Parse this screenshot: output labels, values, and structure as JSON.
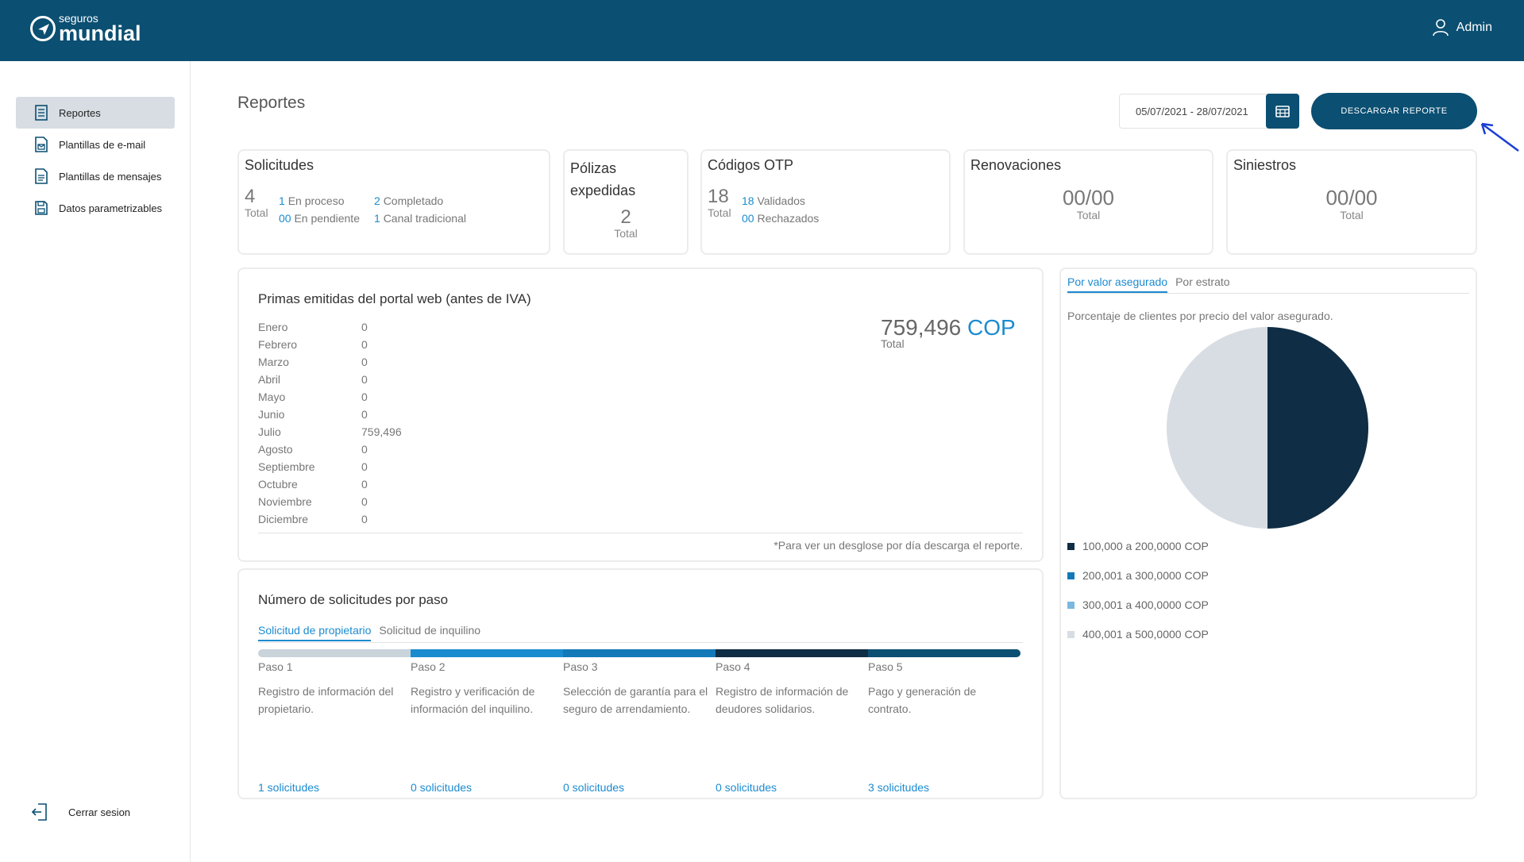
{
  "brand": {
    "small": "seguros",
    "big": "mundial"
  },
  "user": {
    "name": "Admin"
  },
  "sidebar": {
    "items": [
      {
        "label": "Reportes"
      },
      {
        "label": "Plantillas de e-mail"
      },
      {
        "label": "Plantillas de mensajes"
      },
      {
        "label": "Datos parametrizables"
      }
    ],
    "logout": "Cerrar sesion"
  },
  "header": {
    "title": "Reportes",
    "date_range": "05/07/2021 - 28/07/2021",
    "download_label": "DESCARGAR REPORTE"
  },
  "cards": {
    "solicitudes": {
      "title": "Solicitudes",
      "total": "4",
      "total_label": "Total",
      "proceso_n": "1",
      "proceso_l": "En proceso",
      "pendiente_n": "00",
      "pendiente_l": "En pendiente",
      "completado_n": "2",
      "completado_l": "Completado",
      "canal_n": "1",
      "canal_l": "Canal tradicional"
    },
    "polizas": {
      "title_1": "Pólizas",
      "title_2": "expedidas",
      "total": "2",
      "total_label": "Total"
    },
    "otp": {
      "title": "Códigos OTP",
      "total": "18",
      "total_label": "Total",
      "validados_n": "18",
      "validados_l": "Validados",
      "rechazados_n": "00",
      "rechazados_l": "Rechazados"
    },
    "renovaciones": {
      "title": "Renovaciones",
      "value": "00/00",
      "label": "Total"
    },
    "siniestros": {
      "title": "Siniestros",
      "value": "00/00",
      "label": "Total"
    }
  },
  "primas": {
    "title": "Primas emitidas del portal web (antes de IVA)",
    "months": [
      {
        "name": "Enero",
        "value": "0"
      },
      {
        "name": "Febrero",
        "value": "0"
      },
      {
        "name": "Marzo",
        "value": "0"
      },
      {
        "name": "Abril",
        "value": "0"
      },
      {
        "name": "Mayo",
        "value": "0"
      },
      {
        "name": "Junio",
        "value": "0"
      },
      {
        "name": "Julio",
        "value": "759,496"
      },
      {
        "name": "Agosto",
        "value": "0"
      },
      {
        "name": "Septiembre",
        "value": "0"
      },
      {
        "name": "Octubre",
        "value": "0"
      },
      {
        "name": "Noviembre",
        "value": "0"
      },
      {
        "name": "Diciembre",
        "value": "0"
      }
    ],
    "total_value": "759,496",
    "total_currency": "COP",
    "total_label": "Total",
    "footnote": "*Para ver un desglose por día descarga el reporte."
  },
  "pasos": {
    "title": "Número de solicitudes por paso",
    "tabs": [
      {
        "label": "Solicitud de propietario"
      },
      {
        "label": "Solicitud de inquilino"
      }
    ],
    "steps": [
      {
        "name": "Paso 1",
        "desc": "Registro de información del propietario.",
        "count": "1 solicitudes",
        "color": "#c9d3da"
      },
      {
        "name": "Paso 2",
        "desc": "Registro y verificación de información del inquilino.",
        "count": "0 solicitudes",
        "color": "#1b8bd0"
      },
      {
        "name": "Paso 3",
        "desc": "Selección de garantía para el seguro de arrendamiento.",
        "count": "0 solicitudes",
        "color": "#1479b8"
      },
      {
        "name": "Paso 4",
        "desc": "Registro de información de deudores solidarios.",
        "count": "0 solicitudes",
        "color": "#0f2d44"
      },
      {
        "name": "Paso 5",
        "desc": "Pago y generación de contrato.",
        "count": "3 solicitudes",
        "color": "#0b4f72"
      }
    ]
  },
  "pie_panel": {
    "tabs": [
      {
        "label": "Por valor asegurado"
      },
      {
        "label": "Por estrato"
      }
    ],
    "subtitle": "Porcentaje de clientes por precio del valor asegurado.",
    "legend": [
      {
        "label": "100,000 a 200,0000 COP",
        "color": "#0f2d44"
      },
      {
        "label": "200,001 a 300,0000 COP",
        "color": "#1479b8"
      },
      {
        "label": "300,001 a 400,0000 COP",
        "color": "#7ab8e0"
      },
      {
        "label": "400,001 a 500,0000 COP",
        "color": "#d7dde3"
      }
    ]
  },
  "chart_data": {
    "type": "pie",
    "categories": [
      "100,000 a 200,0000 COP",
      "200,001 a 300,0000 COP",
      "300,001 a 400,0000 COP",
      "400,001 a 500,0000 COP"
    ],
    "values": [
      50,
      0,
      0,
      50
    ],
    "colors": [
      "#0f2d44",
      "#1479b8",
      "#7ab8e0",
      "#d7dde3"
    ]
  }
}
